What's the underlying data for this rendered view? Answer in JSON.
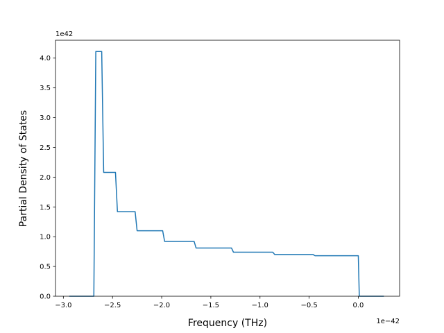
{
  "chart_data": {
    "type": "line",
    "xlabel": "Frequency (THz)",
    "ylabel": "Partial Density of States",
    "x_offset_text": "1e−42",
    "y_offset_text": "1e42",
    "x_scale_exponent": -42,
    "y_scale_exponent": 42,
    "xlim": [
      -3.08,
      0.42
    ],
    "ylim": [
      0,
      4.3
    ],
    "x_ticks": [
      -3.0,
      -2.5,
      -2.0,
      -1.5,
      -1.0,
      -0.5,
      0.0
    ],
    "x_tick_labels": [
      "−3.0",
      "−2.5",
      "−2.0",
      "−1.5",
      "−1.0",
      "−0.5",
      "0.0"
    ],
    "y_ticks": [
      0.0,
      0.5,
      1.0,
      1.5,
      2.0,
      2.5,
      3.0,
      3.5,
      4.0
    ],
    "y_tick_labels": [
      "0.0",
      "0.5",
      "1.0",
      "1.5",
      "2.0",
      "2.5",
      "3.0",
      "3.5",
      "4.0"
    ],
    "grid": false,
    "series": [
      {
        "color": "#1f77b4",
        "x": [
          -2.94,
          -2.69,
          -2.67,
          -2.61,
          -2.59,
          -2.47,
          -2.45,
          -2.27,
          -2.25,
          -1.99,
          -1.97,
          -1.67,
          -1.65,
          -1.29,
          -1.27,
          -0.87,
          -0.85,
          -0.46,
          -0.44,
          0.0,
          0.01,
          0.26
        ],
        "y": [
          0.0,
          0.0,
          4.11,
          4.11,
          2.08,
          2.08,
          1.42,
          1.42,
          1.1,
          1.1,
          0.92,
          0.92,
          0.81,
          0.81,
          0.74,
          0.74,
          0.7,
          0.7,
          0.68,
          0.68,
          0.0,
          0.0
        ]
      }
    ]
  }
}
